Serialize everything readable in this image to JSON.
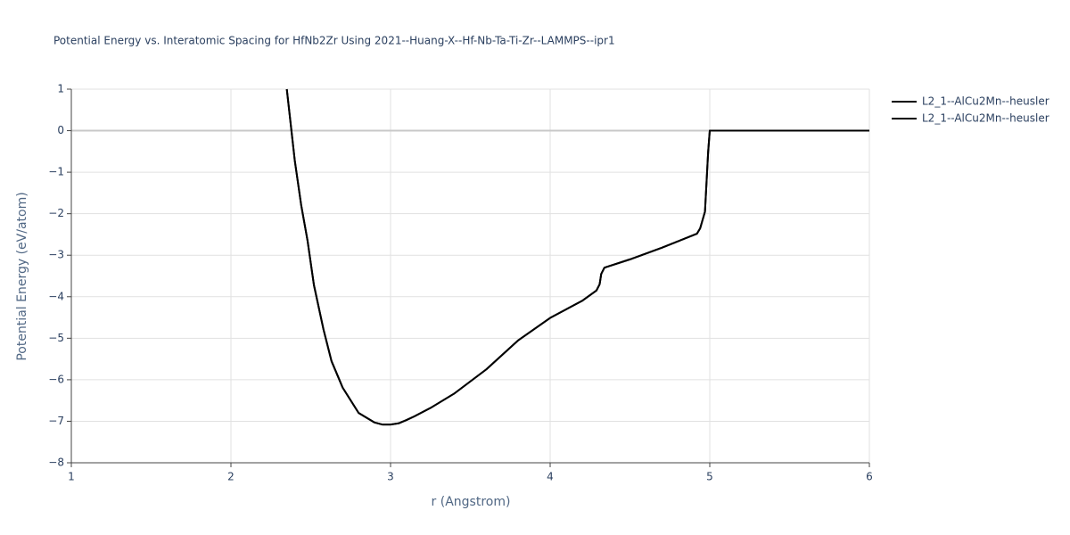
{
  "chart_data": {
    "type": "line",
    "title": "Potential Energy vs. Interatomic Spacing for HfNb2Zr Using 2021--Huang-X--Hf-Nb-Ta-Ti-Zr--LAMMPS--ipr1",
    "x_label": "r (Angstrom)",
    "y_label": "Potential Energy (eV/atom)",
    "xlim": [
      1,
      6
    ],
    "xticks": [
      1,
      2,
      3,
      4,
      5,
      6
    ],
    "ylim": [
      -8,
      1
    ],
    "yticks": [
      {
        "value": -8,
        "label": "−8"
      },
      {
        "value": -7,
        "label": "−7"
      },
      {
        "value": -6,
        "label": "−6"
      },
      {
        "value": -5,
        "label": "−5"
      },
      {
        "value": -4,
        "label": "−4"
      },
      {
        "value": -3,
        "label": "−3"
      },
      {
        "value": -2,
        "label": "−2"
      },
      {
        "value": -1,
        "label": "−1"
      },
      0,
      1
    ],
    "grid": true,
    "legend_position": "right",
    "series": [
      {
        "name": "L2_1--AlCu2Mn--heusler",
        "color": "#000000",
        "x": [
          2.35,
          2.4,
          2.44,
          2.48,
          2.52,
          2.58,
          2.63,
          2.7,
          2.8,
          2.9,
          2.95,
          3.0,
          3.05,
          3.1,
          3.15,
          3.25,
          3.4,
          3.6,
          3.8,
          4.0,
          4.2,
          4.29,
          4.31,
          4.32,
          4.34,
          4.5,
          4.7,
          4.92,
          4.94,
          4.97,
          4.99,
          5.0,
          6.0
        ],
        "values": [
          1.0,
          -0.72,
          -1.79,
          -2.65,
          -3.72,
          -4.79,
          -5.55,
          -6.19,
          -6.8,
          -7.03,
          -7.08,
          -7.08,
          -7.05,
          -6.97,
          -6.88,
          -6.68,
          -6.33,
          -5.75,
          -5.05,
          -4.51,
          -4.1,
          -3.85,
          -3.7,
          -3.45,
          -3.3,
          -3.1,
          -2.82,
          -2.48,
          -2.35,
          -1.95,
          -0.5,
          0,
          0
        ]
      },
      {
        "name": "L2_1--AlCu2Mn--heusler",
        "color": "#000000",
        "x": [
          2.35,
          2.4,
          2.44,
          2.48,
          2.52,
          2.58,
          2.63,
          2.7,
          2.8,
          2.9,
          2.95,
          3.0,
          3.05,
          3.1,
          3.15,
          3.25,
          3.4,
          3.6,
          3.8,
          4.0,
          4.2,
          4.29,
          4.31,
          4.32,
          4.34,
          4.5,
          4.7,
          4.92,
          4.94,
          4.97,
          4.99,
          5.0,
          6.0
        ],
        "values": [
          1.0,
          -0.72,
          -1.79,
          -2.65,
          -3.72,
          -4.79,
          -5.55,
          -6.19,
          -6.8,
          -7.03,
          -7.08,
          -7.08,
          -7.05,
          -6.97,
          -6.88,
          -6.68,
          -6.33,
          -5.75,
          -5.05,
          -4.51,
          -4.1,
          -3.85,
          -3.7,
          -3.45,
          -3.3,
          -3.1,
          -2.82,
          -2.48,
          -2.35,
          -1.95,
          -0.5,
          0,
          0
        ]
      }
    ]
  }
}
